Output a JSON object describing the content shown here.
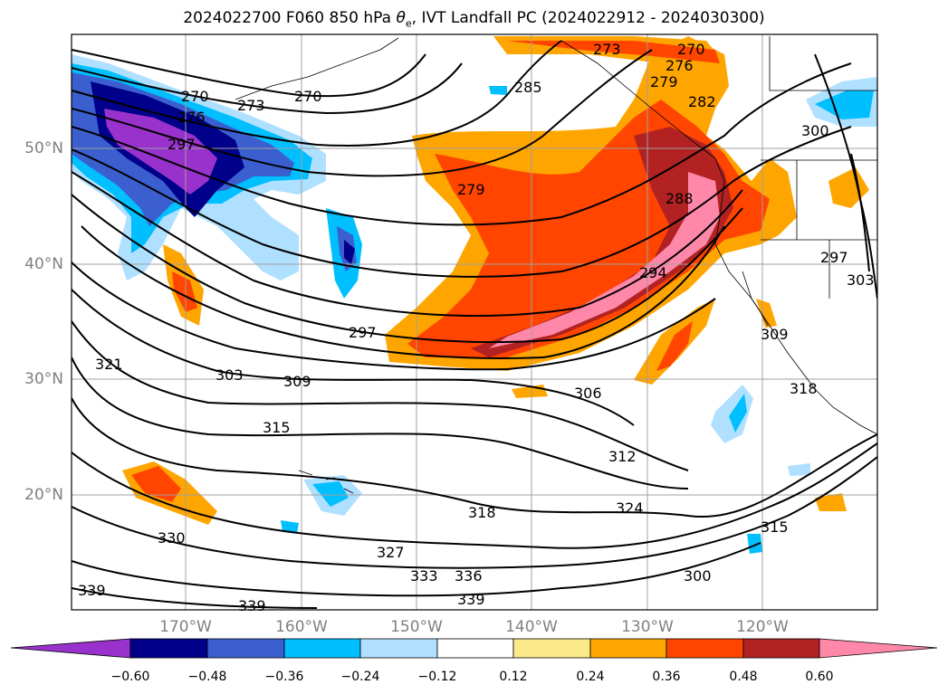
{
  "title": {
    "prefix": "2024022700 F060 850 hPa ",
    "theta": "θ",
    "theta_sub": "e",
    "suffix": ", IVT Landfall PC (2024022912 - 2024030300)"
  },
  "lat_labels": [
    "50°N",
    "40°N",
    "30°N",
    "20°N"
  ],
  "lon_labels": [
    "170°W",
    "160°W",
    "150°W",
    "140°W",
    "130°W",
    "120°W"
  ],
  "contour_labels": [
    "270",
    "273",
    "270",
    "276",
    "297",
    "285",
    "273",
    "270",
    "276",
    "279",
    "282",
    "279",
    "288",
    "294",
    "297",
    "303",
    "309",
    "315",
    "306",
    "312",
    "321",
    "318",
    "324",
    "330",
    "327",
    "333",
    "336",
    "339",
    "339",
    "339",
    "300",
    "300",
    "297",
    "303",
    "309",
    "318",
    "315"
  ],
  "colorbar": {
    "ticks": [
      "−0.60",
      "−0.48",
      "−0.36",
      "−0.24",
      "−0.12",
      "0.12",
      "0.24",
      "0.36",
      "0.48",
      "0.60"
    ],
    "colors": [
      "#9932cc",
      "#00008b",
      "#3b5fcf",
      "#00bfff",
      "#b0e0ff",
      "#ffffff",
      "#fce98a",
      "#ffa500",
      "#ff4500",
      "#b22222",
      "#ff88aa"
    ]
  }
}
